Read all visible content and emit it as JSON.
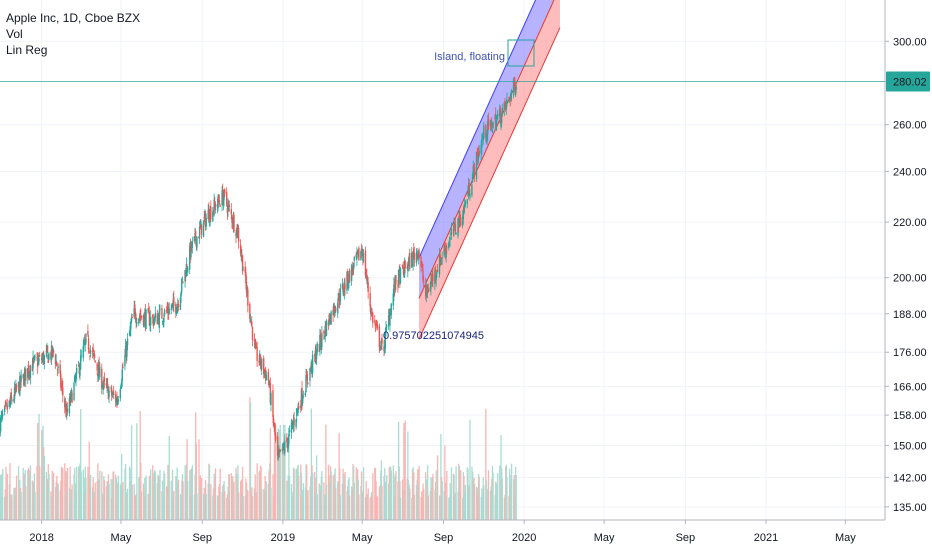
{
  "legend": {
    "symbol_line": "Apple Inc, 1D, Cboe BZX",
    "indicator_vol": "Vol",
    "indicator_linreg": "Lin Reg"
  },
  "annotations": {
    "island_label": "Island, floating",
    "linreg_value": "0.975702251074945"
  },
  "price_badge": {
    "value": "280.02",
    "color": "#26a69a"
  },
  "colors": {
    "up": "#26a69a",
    "down": "#ef5350",
    "vol_up": "#a9dcd3",
    "vol_down": "#f7b6b4",
    "channel_upper": "#7b74ff",
    "channel_lower": "#ff8f8f",
    "grid": "#f0f3fa",
    "annotation_text": "#3f51b5",
    "linreg_value_text": "#1a237e"
  },
  "chart_data": {
    "type": "candlestick",
    "symbol": "Apple Inc",
    "interval": "1D",
    "exchange": "Cboe BZX",
    "y_axis": {
      "scale": "log",
      "ticks": [
        135,
        142,
        150,
        158,
        166,
        176,
        188,
        200,
        220,
        240,
        260,
        280,
        300
      ],
      "tick_labels": [
        "135.00",
        "142.00",
        "150.00",
        "158.00",
        "166.00",
        "176.00",
        "188.00",
        "200.00",
        "220.00",
        "240.00",
        "260.00",
        "280.00",
        "300.00"
      ],
      "range": [
        132,
        322
      ]
    },
    "x_axis": {
      "ticks": [
        "2018",
        "May",
        "Sep",
        "2019",
        "May",
        "Sep",
        "2020",
        "May",
        "Sep",
        "2021",
        "May"
      ],
      "range": [
        "2017-10-30",
        "2021-06-30"
      ]
    },
    "price_path": [
      {
        "date": "2017-10-30",
        "close": 156
      },
      {
        "date": "2017-12-15",
        "close": 172
      },
      {
        "date": "2018-01-20",
        "close": 176
      },
      {
        "date": "2018-02-08",
        "close": 158
      },
      {
        "date": "2018-03-10",
        "close": 180
      },
      {
        "date": "2018-04-05",
        "close": 166
      },
      {
        "date": "2018-04-25",
        "close": 162
      },
      {
        "date": "2018-05-20",
        "close": 188
      },
      {
        "date": "2018-06-20",
        "close": 186
      },
      {
        "date": "2018-07-25",
        "close": 191
      },
      {
        "date": "2018-08-15",
        "close": 210
      },
      {
        "date": "2018-09-10",
        "close": 223
      },
      {
        "date": "2018-10-03",
        "close": 230
      },
      {
        "date": "2018-10-25",
        "close": 216
      },
      {
        "date": "2018-11-20",
        "close": 176
      },
      {
        "date": "2018-12-10",
        "close": 168
      },
      {
        "date": "2018-12-24",
        "close": 146
      },
      {
        "date": "2019-01-10",
        "close": 152
      },
      {
        "date": "2019-02-10",
        "close": 170
      },
      {
        "date": "2019-03-15",
        "close": 188
      },
      {
        "date": "2019-04-10",
        "close": 200
      },
      {
        "date": "2019-05-01",
        "close": 210
      },
      {
        "date": "2019-05-15",
        "close": 188
      },
      {
        "date": "2019-06-01",
        "close": 176
      },
      {
        "date": "2019-06-20",
        "close": 198
      },
      {
        "date": "2019-07-25",
        "close": 210
      },
      {
        "date": "2019-08-05",
        "close": 194
      },
      {
        "date": "2019-08-30",
        "close": 208
      },
      {
        "date": "2019-10-01",
        "close": 224
      },
      {
        "date": "2019-11-01",
        "close": 256
      },
      {
        "date": "2019-12-01",
        "close": 266
      },
      {
        "date": "2019-12-20",
        "close": 280
      }
    ],
    "current_price": 280.02,
    "lin_reg": {
      "start": {
        "date": "2019-07-26",
        "value": 193
      },
      "end": {
        "date": "2019-12-20",
        "value": 279
      },
      "upper_offset": 14,
      "lower_offset": -14,
      "correlation": 0.975702251074945
    },
    "volume": {
      "scale_max": 100
    }
  }
}
